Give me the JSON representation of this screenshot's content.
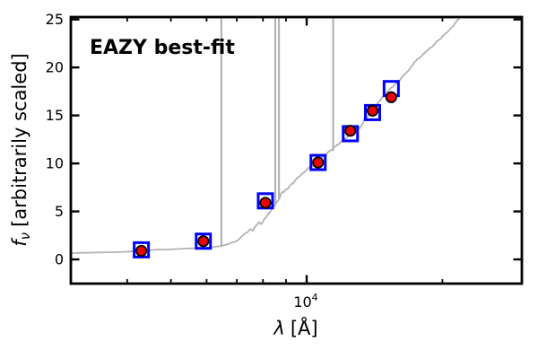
{
  "figure": {
    "background": "#ffffff",
    "spine_color": "#000000"
  },
  "annotation": {
    "label": "EAZY best-fit",
    "color": "#ff0000"
  },
  "axes": {
    "x_scale": "log",
    "xlabel": {
      "symbol": "λ",
      "unit": "[Å]"
    },
    "ylabel": {
      "symbol": "f",
      "subscript": "ν",
      "rest": "[arbitrarily scaled]"
    },
    "x_major_ticks": [
      {
        "value": 10000,
        "label_base": "10",
        "label_exp": "4"
      }
    ],
    "x_minor_ticks": [
      4000,
      5000,
      6000,
      7000,
      8000,
      9000,
      20000
    ],
    "y_major_ticks": [
      0,
      5,
      10,
      15,
      20,
      25
    ]
  },
  "chart_data": {
    "type": "line",
    "x_scale": "log",
    "xlim": [
      3000,
      30000
    ],
    "ylim": [
      -2.52,
      25.25
    ],
    "xlabel": "lambda [Angstrom]",
    "ylabel": "f_nu [arbitrarily scaled]",
    "grid": false,
    "legend": false,
    "series": [
      {
        "name": "eazy-template-spectrum",
        "type": "line",
        "color": "#b3b3b3",
        "linewidth": 1.8,
        "points": [
          [
            3000,
            0.65
          ],
          [
            3300,
            0.7
          ],
          [
            3600,
            0.74
          ],
          [
            3950,
            0.79
          ],
          [
            4310,
            0.89
          ],
          [
            4500,
            0.95
          ],
          [
            4650,
            1.02
          ],
          [
            4950,
            1.04
          ],
          [
            5310,
            1.12
          ],
          [
            5700,
            1.17
          ],
          [
            6100,
            1.26
          ],
          [
            6470,
            1.4
          ],
          [
            6680,
            1.58
          ],
          [
            6900,
            1.82
          ],
          [
            7060,
            2.06
          ],
          [
            7220,
            2.48
          ],
          [
            7360,
            2.8
          ],
          [
            7490,
            3.15
          ],
          [
            7600,
            2.98
          ],
          [
            7700,
            3.5
          ],
          [
            7830,
            3.85
          ],
          [
            7940,
            3.68
          ],
          [
            8080,
            4.3
          ],
          [
            8190,
            4.6
          ],
          [
            8290,
            4.95
          ],
          [
            8390,
            5.33
          ],
          [
            8530,
            5.72
          ],
          [
            8680,
            6.28
          ],
          [
            8800,
            6.92
          ],
          [
            8930,
            7.15
          ],
          [
            9060,
            7.32
          ],
          [
            9200,
            7.72
          ],
          [
            9390,
            8.12
          ],
          [
            9560,
            8.5
          ],
          [
            9750,
            8.88
          ],
          [
            9950,
            9.25
          ],
          [
            10180,
            9.62
          ],
          [
            10410,
            9.9
          ],
          [
            10650,
            10.28
          ],
          [
            10900,
            10.75
          ],
          [
            11160,
            11.2
          ],
          [
            11430,
            11.48
          ],
          [
            11690,
            11.95
          ],
          [
            11970,
            12.33
          ],
          [
            12280,
            12.7
          ],
          [
            12560,
            12.98
          ],
          [
            12850,
            13.35
          ],
          [
            13180,
            13.82
          ],
          [
            13300,
            14.1
          ],
          [
            13400,
            14.55
          ],
          [
            13550,
            14.78
          ],
          [
            13810,
            15.15
          ],
          [
            14130,
            15.8
          ],
          [
            14460,
            16.45
          ],
          [
            14790,
            17.0
          ],
          [
            15130,
            17.55
          ],
          [
            15480,
            17.95
          ],
          [
            15840,
            18.4
          ],
          [
            16200,
            18.88
          ],
          [
            16570,
            19.35
          ],
          [
            16950,
            19.9
          ],
          [
            17330,
            20.55
          ],
          [
            17720,
            20.92
          ],
          [
            18130,
            21.4
          ],
          [
            18540,
            21.78
          ],
          [
            18960,
            22.15
          ],
          [
            19400,
            22.7
          ],
          [
            19840,
            23.0
          ],
          [
            20300,
            23.55
          ],
          [
            20760,
            23.92
          ],
          [
            21200,
            24.4
          ],
          [
            21600,
            24.95
          ],
          [
            21850,
            25.1
          ]
        ]
      },
      {
        "name": "emission-lines",
        "type": "vlines",
        "color": "#b3b3b3",
        "linewidth": 2.2,
        "top": 25.25,
        "lines": [
          {
            "wavelength": 6470,
            "base": 1.4
          },
          {
            "wavelength": 8520,
            "base": 5.7
          },
          {
            "wavelength": 8680,
            "base": 6.3
          },
          {
            "wavelength": 11450,
            "base": 11.3
          }
        ]
      },
      {
        "name": "model-photometry",
        "type": "scatter",
        "marker": "open-square",
        "color": "#0000ff",
        "marker_size": 19,
        "points": [
          [
            4300,
            1.0
          ],
          [
            5900,
            1.9
          ],
          [
            8100,
            6.1
          ],
          [
            10600,
            10.1
          ],
          [
            12500,
            13.1
          ],
          [
            14000,
            15.3
          ],
          [
            15400,
            17.8
          ]
        ]
      },
      {
        "name": "observed-photometry",
        "type": "scatter",
        "marker": "filled-circle",
        "color": "#ee0000",
        "edgecolor": "#000000",
        "marker_size": 11.4,
        "points": [
          [
            4300,
            0.9
          ],
          [
            5900,
            1.9
          ],
          [
            8100,
            5.9
          ],
          [
            10600,
            10.1
          ],
          [
            12500,
            13.4
          ],
          [
            14000,
            15.5
          ],
          [
            15400,
            16.9
          ]
        ]
      }
    ]
  }
}
